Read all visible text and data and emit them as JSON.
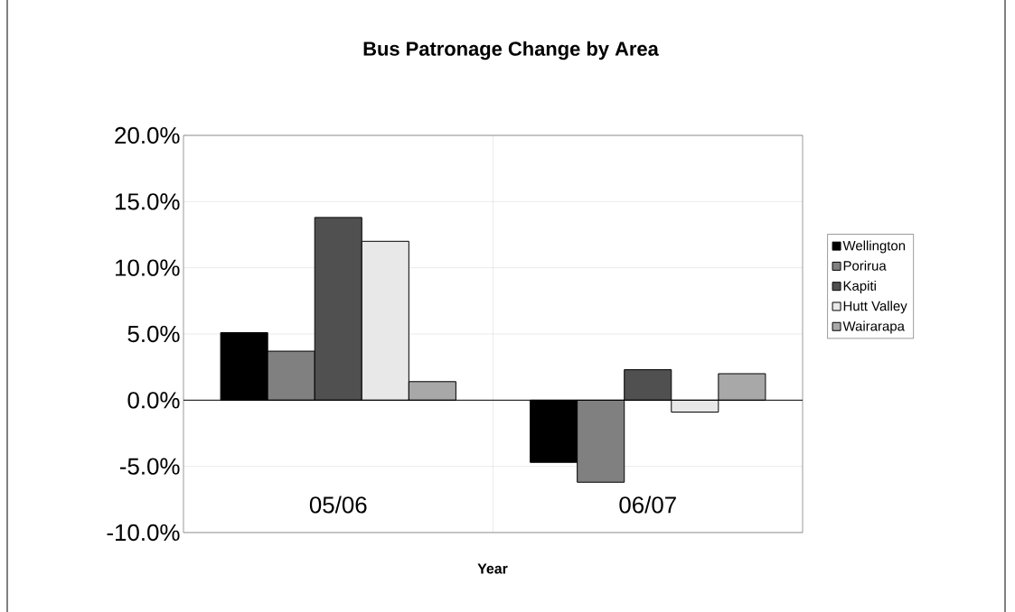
{
  "chart_data": {
    "type": "bar",
    "title": "Bus Patronage Change by Area",
    "xlabel": "Year",
    "categories": [
      "05/06",
      "06/07"
    ],
    "series": [
      {
        "name": "Wellington",
        "color": "#000000",
        "values": [
          5.1,
          -4.7
        ]
      },
      {
        "name": "Porirua",
        "color": "#808080",
        "values": [
          3.7,
          -6.2
        ]
      },
      {
        "name": "Kapiti",
        "color": "#505050",
        "values": [
          13.8,
          2.3
        ]
      },
      {
        "name": "Hutt Valley",
        "color": "#e8e8e8",
        "values": [
          12.0,
          -0.9
        ]
      },
      {
        "name": "Wairarapa",
        "color": "#a8a8a8",
        "values": [
          1.4,
          2.0
        ]
      }
    ],
    "ylim": [
      -10,
      20
    ],
    "yticks": [
      {
        "value": -10,
        "label": "-10.0%"
      },
      {
        "value": -5,
        "label": "-5.0%"
      },
      {
        "value": 0,
        "label": "0.0%"
      },
      {
        "value": 5,
        "label": "5.0%"
      },
      {
        "value": 10,
        "label": "10.0%"
      },
      {
        "value": 15,
        "label": "15.0%"
      },
      {
        "value": 20,
        "label": "20.0%"
      }
    ],
    "grid": true,
    "legend": "right"
  }
}
